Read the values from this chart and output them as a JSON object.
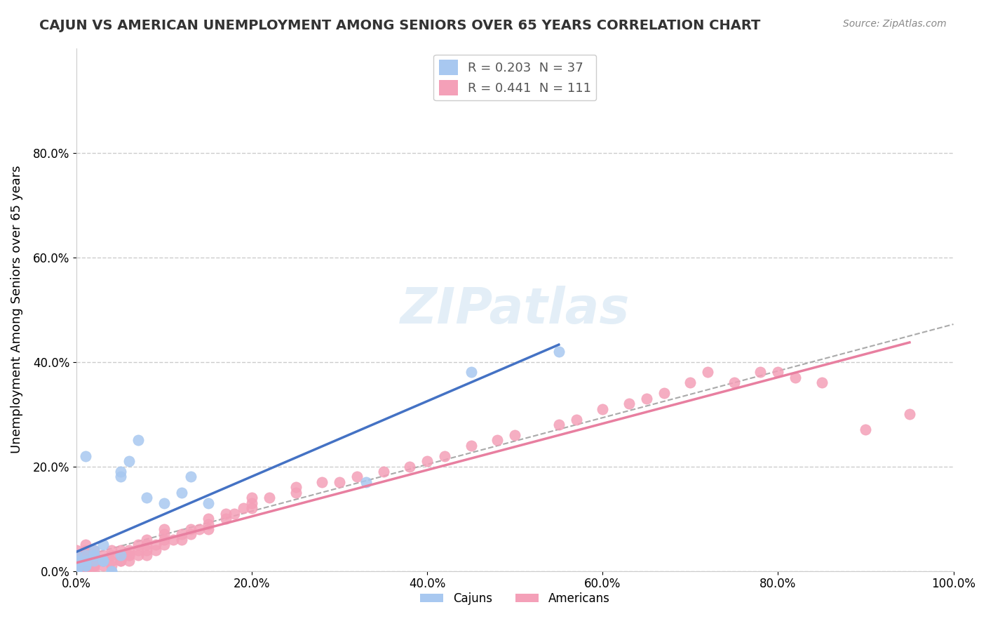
{
  "title": "CAJUN VS AMERICAN UNEMPLOYMENT AMONG SENIORS OVER 65 YEARS CORRELATION CHART",
  "source": "Source: ZipAtlas.com",
  "ylabel": "Unemployment Among Seniors over 65 years",
  "xlabel": "",
  "xlim": [
    0,
    1.0
  ],
  "ylim": [
    0,
    1.0
  ],
  "xticks": [
    0.0,
    0.2,
    0.4,
    0.6,
    0.8,
    1.0
  ],
  "xtick_labels": [
    "0.0%",
    "20.0%",
    "40.0%",
    "60.0%",
    "80.0%",
    "100.0%"
  ],
  "yticks": [
    0.0,
    0.2,
    0.4,
    0.6,
    0.8
  ],
  "ytick_labels": [
    "0.0%",
    "20.0%",
    "40.0%",
    "60.0%",
    "80.0%"
  ],
  "cajun_R": 0.203,
  "cajun_N": 37,
  "american_R": 0.441,
  "american_N": 111,
  "cajun_color": "#a8c8f0",
  "american_color": "#f4a0b8",
  "cajun_line_color": "#4472c4",
  "american_line_color": "#e87fa0",
  "background_color": "#ffffff",
  "grid_color": "#cccccc",
  "watermark": "ZIPatlas",
  "cajun_x": [
    0.0,
    0.0,
    0.0,
    0.0,
    0.0,
    0.0,
    0.0,
    0.0,
    0.0,
    0.0,
    0.01,
    0.01,
    0.01,
    0.01,
    0.01,
    0.02,
    0.02,
    0.02,
    0.02,
    0.03,
    0.03,
    0.03,
    0.04,
    0.04,
    0.05,
    0.05,
    0.05,
    0.06,
    0.07,
    0.08,
    0.1,
    0.12,
    0.13,
    0.15,
    0.33,
    0.45,
    0.55
  ],
  "cajun_y": [
    0.0,
    0.0,
    0.0,
    0.0,
    0.0,
    0.01,
    0.01,
    0.02,
    0.02,
    0.03,
    0.01,
    0.01,
    0.02,
    0.03,
    0.22,
    0.02,
    0.03,
    0.03,
    0.04,
    0.02,
    0.02,
    0.05,
    0.0,
    0.0,
    0.03,
    0.18,
    0.19,
    0.21,
    0.25,
    0.14,
    0.13,
    0.15,
    0.18,
    0.13,
    0.17,
    0.38,
    0.42
  ],
  "american_x": [
    0.0,
    0.0,
    0.0,
    0.0,
    0.0,
    0.0,
    0.0,
    0.0,
    0.0,
    0.0,
    0.0,
    0.0,
    0.0,
    0.0,
    0.0,
    0.0,
    0.0,
    0.0,
    0.0,
    0.0,
    0.01,
    0.01,
    0.01,
    0.01,
    0.01,
    0.01,
    0.01,
    0.01,
    0.01,
    0.01,
    0.02,
    0.02,
    0.02,
    0.02,
    0.02,
    0.02,
    0.02,
    0.02,
    0.03,
    0.03,
    0.03,
    0.03,
    0.04,
    0.04,
    0.04,
    0.04,
    0.05,
    0.05,
    0.05,
    0.05,
    0.06,
    0.06,
    0.06,
    0.06,
    0.07,
    0.07,
    0.07,
    0.08,
    0.08,
    0.08,
    0.08,
    0.09,
    0.09,
    0.1,
    0.1,
    0.1,
    0.1,
    0.11,
    0.12,
    0.12,
    0.13,
    0.13,
    0.14,
    0.15,
    0.15,
    0.15,
    0.17,
    0.17,
    0.18,
    0.19,
    0.2,
    0.2,
    0.2,
    0.22,
    0.25,
    0.25,
    0.28,
    0.3,
    0.32,
    0.35,
    0.38,
    0.4,
    0.42,
    0.45,
    0.48,
    0.5,
    0.55,
    0.57,
    0.6,
    0.63,
    0.65,
    0.67,
    0.7,
    0.72,
    0.75,
    0.78,
    0.8,
    0.82,
    0.85,
    0.9,
    0.95
  ],
  "american_y": [
    0.0,
    0.0,
    0.0,
    0.0,
    0.0,
    0.0,
    0.0,
    0.0,
    0.0,
    0.0,
    0.01,
    0.01,
    0.01,
    0.01,
    0.01,
    0.02,
    0.02,
    0.02,
    0.03,
    0.04,
    0.0,
    0.0,
    0.01,
    0.01,
    0.01,
    0.02,
    0.02,
    0.03,
    0.04,
    0.05,
    0.0,
    0.01,
    0.01,
    0.02,
    0.02,
    0.03,
    0.03,
    0.04,
    0.01,
    0.02,
    0.02,
    0.03,
    0.01,
    0.02,
    0.03,
    0.04,
    0.02,
    0.02,
    0.03,
    0.04,
    0.02,
    0.03,
    0.03,
    0.04,
    0.03,
    0.04,
    0.05,
    0.03,
    0.04,
    0.05,
    0.06,
    0.04,
    0.05,
    0.05,
    0.06,
    0.07,
    0.08,
    0.06,
    0.06,
    0.07,
    0.07,
    0.08,
    0.08,
    0.08,
    0.09,
    0.1,
    0.1,
    0.11,
    0.11,
    0.12,
    0.12,
    0.13,
    0.14,
    0.14,
    0.15,
    0.16,
    0.17,
    0.17,
    0.18,
    0.19,
    0.2,
    0.21,
    0.22,
    0.24,
    0.25,
    0.26,
    0.28,
    0.29,
    0.31,
    0.32,
    0.33,
    0.34,
    0.36,
    0.38,
    0.36,
    0.38,
    0.38,
    0.37,
    0.36,
    0.27,
    0.3
  ]
}
